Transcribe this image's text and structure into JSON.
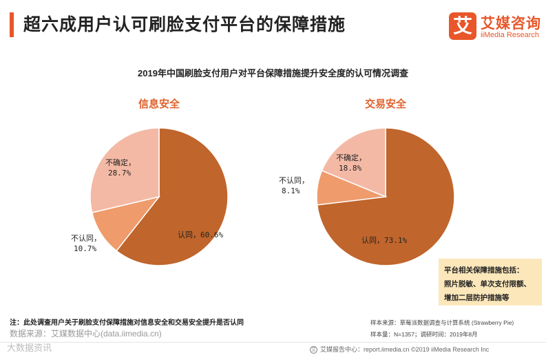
{
  "header": {
    "title": "超六成用户认可刷脸支付平台的保障措施",
    "logo_mark": "艾",
    "logo_cn": "艾媒咨询",
    "logo_en": "iiMedia Research"
  },
  "chart_data": [
    {
      "type": "pie",
      "title": "2019年中国刷脸支付用户对平台保障措施提升安全度的认可情况调查",
      "subtitle": "信息安全",
      "labels": [
        "认同",
        "不认同",
        "不确定"
      ],
      "values": [
        60.6,
        10.7,
        28.7
      ],
      "value_labels": [
        "认同, 60.6%",
        "不认同, 10.7%",
        "不确定, 28.7%"
      ],
      "colors": [
        "#c0652c",
        "#ef9b6c",
        "#f3b9a5"
      ]
    },
    {
      "type": "pie",
      "title": "2019年中国刷脸支付用户对平台保障措施提升安全度的认可情况调查",
      "subtitle": "交易安全",
      "labels": [
        "认同",
        "不认同",
        "不确定"
      ],
      "values": [
        73.1,
        8.1,
        18.8
      ],
      "value_labels": [
        "认同, 73.1%",
        "不认同, 8.1%",
        "不确定, 18.8%"
      ],
      "colors": [
        "#c0652c",
        "#ef9b6c",
        "#f3b9a5"
      ]
    }
  ],
  "note": {
    "line1": "平台相关保障措施包括：",
    "line2": "照片脱敏、单次支付限额、",
    "line3": "增加二层防护措施等"
  },
  "footnote": "注：此处调查用户关于刷脸支付保障措施对信息安全和交易安全提升是否认同",
  "source": "数据来源：艾媒数据中心(data.iimedia.cn)",
  "watermark": "大数据资讯",
  "sample_source": "样本来源：草莓派数据调查与计算系统 (Strawberry Pie)",
  "sample_size": "样本量：N=1357；调研时间：2019年8月",
  "footer": {
    "icon": "艾",
    "text": "艾媒报告中心：report.iimedia.cn   ©2019   iiMedia Research  Inc"
  }
}
